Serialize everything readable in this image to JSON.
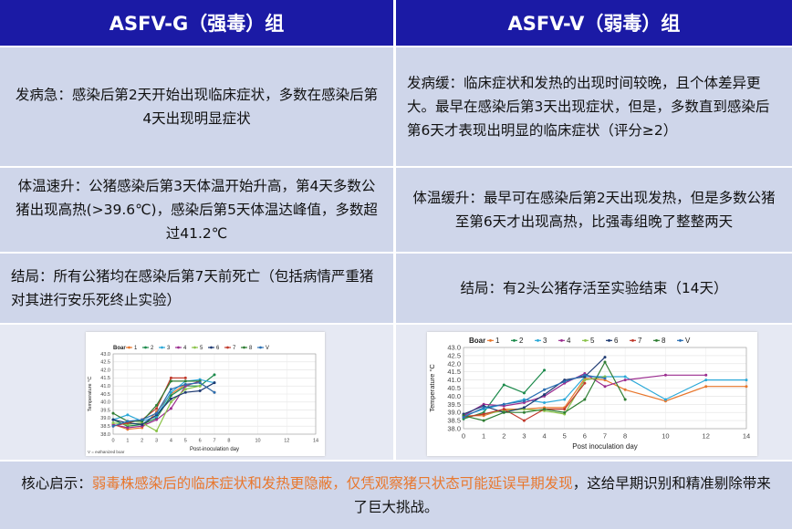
{
  "header": {
    "left_title": "ASFV-G（强毒）组",
    "right_title": "ASFV-V（弱毒）组"
  },
  "rows": [
    {
      "left": "发病急：感染后第2天开始出现临床症状，多数在感染后第4天出现明显症状",
      "right": "发病缓：临床症状和发热的出现时间较晚，且个体差异更大。最早在感染后第3天出现症状，但是，多数直到感染后第6天才表现出明显的临床症状（评分≥2）"
    },
    {
      "left": "体温速升：公猪感染后第3天体温开始升高，第4天多数公猪出现高热(>39.6℃)，感染后第5天体温达峰值，多数超过41.2℃",
      "right": "体温缓升：最早可在感染后第2天出现发热，但是多数公猪至第6天才出现高热，比强毒组晚了整整两天"
    },
    {
      "left": "结局：所有公猪均在感染后第7天前死亡（包括病情严重猪对其进行安乐死终止实验）",
      "right": "结局：有2头公猪存活至实验结束（14天）"
    }
  ],
  "footer": {
    "prefix": "核心启示：",
    "highlight": "弱毒株感染后的临床症状和发热更隐蔽，仅凭观察猪只状态可能延误早期发现",
    "suffix": "，这给早期识别和精准剔除带来了巨大挑战。"
  },
  "chart_data": [
    {
      "type": "line",
      "legend_title": "Boar",
      "xlabel": "Post-inoculation day",
      "ylabel": "Temperature °C",
      "xlim": [
        0,
        14
      ],
      "ylim": [
        38.0,
        43.0
      ],
      "xticks": [
        0,
        1,
        2,
        3,
        4,
        5,
        6,
        7,
        8,
        10,
        12,
        14
      ],
      "yticks": [
        38.0,
        38.5,
        39.0,
        39.5,
        40.0,
        40.5,
        41.0,
        41.5,
        42.0,
        42.5,
        43.0
      ],
      "note": "V = euthanized boar",
      "series": [
        {
          "name": "1",
          "color": "#e8772d",
          "points": [
            [
              0,
              38.6
            ],
            [
              1,
              38.3
            ],
            [
              2,
              38.4
            ],
            [
              3,
              39.4
            ],
            [
              4,
              40.5
            ],
            [
              5,
              41.1
            ],
            [
              6,
              41.2
            ],
            [
              7,
              40.6
            ]
          ]
        },
        {
          "name": "2",
          "color": "#1c8a4b",
          "points": [
            [
              0,
              38.9
            ],
            [
              1,
              38.5
            ],
            [
              2,
              38.6
            ],
            [
              3,
              39.0
            ],
            [
              4,
              40.4
            ],
            [
              5,
              41.0
            ],
            [
              6,
              41.0
            ],
            [
              7,
              41.7
            ]
          ]
        },
        {
          "name": "3",
          "color": "#2aa8d8",
          "points": [
            [
              0,
              38.9
            ],
            [
              1,
              39.2
            ],
            [
              2,
              38.8
            ],
            [
              3,
              39.1
            ],
            [
              4,
              40.6
            ],
            [
              5,
              41.3
            ],
            [
              6,
              41.4
            ],
            [
              7,
              41.2
            ]
          ]
        },
        {
          "name": "4",
          "color": "#9b2d8f",
          "points": [
            [
              0,
              38.6
            ],
            [
              1,
              38.4
            ],
            [
              2,
              38.5
            ],
            [
              3,
              38.9
            ],
            [
              4,
              39.6
            ],
            [
              5,
              41.0
            ],
            [
              6,
              41.3
            ]
          ]
        },
        {
          "name": "5",
          "color": "#8bc34a",
          "points": [
            [
              0,
              38.7
            ],
            [
              1,
              38.6
            ],
            [
              2,
              38.7
            ],
            [
              3,
              38.2
            ],
            [
              4,
              40.0
            ],
            [
              5,
              40.8
            ],
            [
              6,
              41.0
            ]
          ]
        },
        {
          "name": "6",
          "color": "#1f3b73",
          "points": [
            [
              0,
              38.9
            ],
            [
              1,
              38.7
            ],
            [
              2,
              38.6
            ],
            [
              3,
              39.2
            ],
            [
              4,
              40.2
            ],
            [
              5,
              40.6
            ],
            [
              6,
              40.7
            ],
            [
              7,
              41.2
            ]
          ]
        },
        {
          "name": "7",
          "color": "#c0392b",
          "points": [
            [
              0,
              38.5
            ],
            [
              1,
              38.7
            ],
            [
              2,
              38.9
            ],
            [
              3,
              39.6
            ],
            [
              4,
              41.5
            ],
            [
              5,
              41.5
            ]
          ]
        },
        {
          "name": "8",
          "color": "#2e7d32",
          "points": [
            [
              0,
              39.3
            ],
            [
              1,
              38.8
            ],
            [
              2,
              38.8
            ],
            [
              3,
              39.8
            ],
            [
              4,
              41.3
            ],
            [
              5,
              41.3
            ],
            [
              6,
              41.3
            ]
          ]
        },
        {
          "name": "V",
          "color": "#2a6fb3",
          "points": [
            [
              0,
              38.5
            ],
            [
              1,
              38.8
            ],
            [
              2,
              38.9
            ],
            [
              3,
              39.3
            ],
            [
              4,
              40.8
            ],
            [
              5,
              41.1
            ],
            [
              6,
              41.2
            ],
            [
              7,
              40.6
            ]
          ]
        }
      ]
    },
    {
      "type": "line",
      "legend_title": "Boar",
      "xlabel": "Post inoculation day",
      "ylabel": "Temperature °C",
      "xlim": [
        0,
        14
      ],
      "ylim": [
        38.0,
        43.0
      ],
      "xticks": [
        0,
        1,
        2,
        3,
        4,
        5,
        6,
        7,
        8,
        10,
        12,
        14
      ],
      "yticks": [
        38.0,
        38.5,
        39.0,
        39.5,
        40.0,
        40.5,
        41.0,
        41.5,
        42.0,
        42.5,
        43.0
      ],
      "series": [
        {
          "name": "1",
          "color": "#e8772d",
          "points": [
            [
              0,
              38.8
            ],
            [
              1,
              38.8
            ],
            [
              2,
              39.2
            ],
            [
              3,
              39.2
            ],
            [
              4,
              39.3
            ],
            [
              5,
              39.3
            ],
            [
              6,
              41.1
            ],
            [
              7,
              41.0
            ],
            [
              8,
              40.4
            ],
            [
              10,
              39.7
            ],
            [
              12,
              40.6
            ],
            [
              14,
              40.6
            ]
          ]
        },
        {
          "name": "2",
          "color": "#1c8a4b",
          "points": [
            [
              0,
              38.6
            ],
            [
              1,
              39.0
            ],
            [
              2,
              40.7
            ],
            [
              3,
              40.2
            ],
            [
              4,
              41.6
            ]
          ]
        },
        {
          "name": "3",
          "color": "#2aa8d8",
          "points": [
            [
              0,
              38.8
            ],
            [
              1,
              39.2
            ],
            [
              2,
              39.5
            ],
            [
              3,
              39.8
            ],
            [
              4,
              39.6
            ],
            [
              5,
              39.8
            ],
            [
              6,
              41.2
            ],
            [
              7,
              41.2
            ],
            [
              8,
              41.2
            ],
            [
              10,
              39.8
            ],
            [
              12,
              41.0
            ],
            [
              14,
              41.0
            ]
          ]
        },
        {
          "name": "4",
          "color": "#9b2d8f",
          "points": [
            [
              0,
              38.8
            ],
            [
              1,
              39.5
            ],
            [
              2,
              39.4
            ],
            [
              3,
              39.6
            ],
            [
              4,
              40.0
            ],
            [
              5,
              40.8
            ],
            [
              6,
              41.4
            ],
            [
              7,
              40.6
            ],
            [
              8,
              41.0
            ],
            [
              10,
              41.3
            ],
            [
              12,
              41.3
            ]
          ]
        },
        {
          "name": "5",
          "color": "#8bc34a",
          "points": [
            [
              0,
              38.7
            ],
            [
              1,
              38.9
            ],
            [
              2,
              39.1
            ],
            [
              3,
              39.2
            ],
            [
              4,
              39.1
            ],
            [
              5,
              38.9
            ],
            [
              6,
              41.0
            ],
            [
              7,
              41.2
            ]
          ]
        },
        {
          "name": "6",
          "color": "#1f3b73",
          "points": [
            [
              0,
              38.9
            ],
            [
              1,
              39.4
            ],
            [
              2,
              39.0
            ],
            [
              3,
              39.3
            ],
            [
              4,
              40.1
            ],
            [
              5,
              41.0
            ],
            [
              6,
              41.2
            ],
            [
              7,
              42.4
            ]
          ]
        },
        {
          "name": "7",
          "color": "#c0392b",
          "points": [
            [
              0,
              38.7
            ],
            [
              1,
              38.9
            ],
            [
              2,
              39.2
            ],
            [
              3,
              38.5
            ],
            [
              4,
              39.2
            ],
            [
              5,
              39.2
            ],
            [
              6,
              40.8
            ]
          ]
        },
        {
          "name": "8",
          "color": "#2e7d32",
          "points": [
            [
              0,
              38.8
            ],
            [
              1,
              38.5
            ],
            [
              2,
              39.0
            ],
            [
              3,
              39.0
            ],
            [
              4,
              39.2
            ],
            [
              5,
              39.0
            ],
            [
              6,
              39.8
            ],
            [
              7,
              42.1
            ],
            [
              8,
              39.8
            ]
          ]
        },
        {
          "name": "V",
          "color": "#2a6fb3",
          "points": [
            [
              0,
              38.7
            ],
            [
              1,
              39.3
            ],
            [
              2,
              39.5
            ],
            [
              3,
              39.7
            ],
            [
              4,
              40.4
            ],
            [
              5,
              40.9
            ],
            [
              6,
              41.3
            ],
            [
              7,
              41.1
            ]
          ]
        }
      ]
    }
  ]
}
